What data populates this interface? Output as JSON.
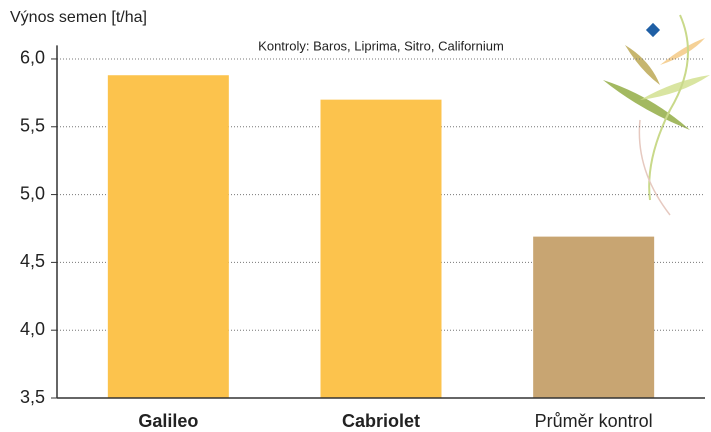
{
  "chart_data": {
    "type": "bar",
    "title": "Výnos semen [t/ha]",
    "subtitle": "Kontroly: Baros, Liprima, Sitro, Californium",
    "categories": [
      "Galileo",
      "Cabriolet",
      "Průměr kontrol"
    ],
    "values": [
      5.88,
      5.7,
      4.69
    ],
    "colors": [
      "#fcc34d",
      "#fcc34d",
      "#c8a572"
    ],
    "ylim": [
      3.5,
      6.1
    ],
    "yticks": [
      {
        "value": 3.5,
        "label": "3,5"
      },
      {
        "value": 4,
        "label": "4,0"
      },
      {
        "value": 4.5,
        "label": "4,5"
      },
      {
        "value": 5,
        "label": "5,0"
      },
      {
        "value": 5.5,
        "label": "5,5"
      },
      {
        "value": 6,
        "label": "6,0"
      }
    ],
    "grid": true
  }
}
